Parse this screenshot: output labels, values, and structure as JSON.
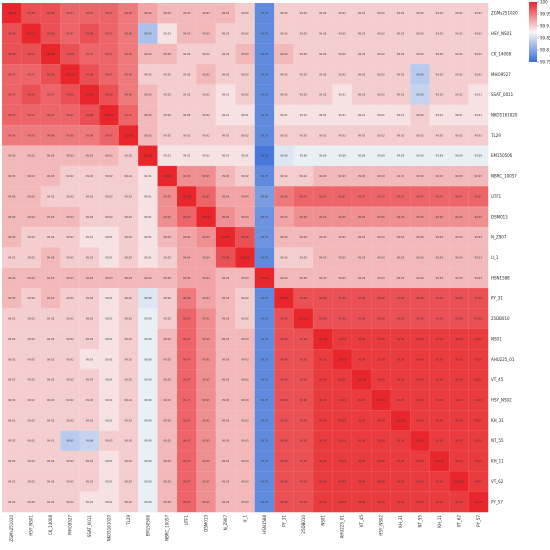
{
  "chart_data": {
    "type": "heatmap",
    "title": "",
    "xlabel": "",
    "ylabel": "",
    "labels": [
      "ZGMs251020",
      "HSY_NS01",
      "CK_14008",
      "MHO9527",
      "SSAT_0011",
      "NKO5161020",
      "TL29",
      "EM150506",
      "NBRC_10057",
      "UTF1",
      "DSM013",
      "N_Z907",
      "U_1",
      "HSN1588",
      "PY_31",
      "25DB010",
      "NS01",
      "AHU225_01",
      "VT_45",
      "HSY_NS02",
      "KH_31",
      "NT_55",
      "KH_11",
      "VT_62",
      "PY_57"
    ],
    "colorbar": {
      "min": 99.6,
      "max": 100,
      "ticks": [
        "99.75",
        "99.8",
        "99.85",
        "99.9",
        "99.95",
        "100"
      ]
    },
    "colors": {
      "high": "#e8262b",
      "mid": "#f7f7f7",
      "low": "#3a6fd8"
    },
    "values": [
      [
        100.0,
        99.98,
        99.98,
        99.97,
        99.97,
        99.97,
        99.96,
        99.94,
        99.93,
        99.93,
        99.93,
        99.93,
        99.92,
        99.78,
        99.92,
        99.92,
        99.92,
        99.92,
        99.92,
        99.92,
        99.92,
        99.92,
        99.92,
        99.92,
        99.92
      ],
      [
        99.98,
        100.0,
        99.98,
        99.97,
        99.98,
        99.97,
        99.96,
        99.84,
        99.91,
        99.93,
        99.93,
        99.92,
        99.92,
        99.78,
        99.92,
        99.92,
        99.92,
        99.92,
        99.92,
        99.92,
        99.92,
        99.92,
        99.92,
        99.92,
        99.92
      ],
      [
        99.98,
        99.98,
        100.0,
        99.98,
        99.97,
        99.97,
        99.96,
        99.93,
        99.93,
        99.92,
        99.92,
        99.92,
        99.93,
        99.78,
        99.93,
        99.92,
        99.92,
        99.92,
        99.92,
        99.92,
        99.92,
        99.92,
        99.92,
        99.92,
        99.92
      ],
      [
        99.97,
        99.97,
        99.98,
        100.0,
        99.98,
        99.97,
        99.96,
        99.92,
        99.92,
        99.92,
        99.93,
        99.92,
        99.92,
        99.78,
        99.92,
        99.92,
        99.92,
        99.92,
        99.92,
        99.92,
        99.92,
        99.85,
        99.92,
        99.92,
        99.92
      ],
      [
        99.97,
        99.98,
        99.97,
        99.98,
        100.0,
        99.98,
        99.96,
        99.93,
        99.92,
        99.92,
        99.92,
        99.91,
        99.92,
        99.78,
        99.92,
        99.92,
        99.92,
        99.91,
        99.92,
        99.92,
        99.92,
        99.86,
        99.92,
        99.92,
        99.91
      ],
      [
        99.97,
        99.97,
        99.97,
        99.97,
        99.98,
        100.0,
        99.97,
        99.93,
        99.92,
        99.92,
        99.92,
        99.91,
        99.91,
        99.78,
        99.91,
        99.91,
        99.91,
        99.91,
        99.91,
        99.91,
        99.91,
        99.92,
        99.91,
        99.91,
        99.91
      ],
      [
        99.96,
        99.96,
        99.96,
        99.96,
        99.96,
        99.97,
        100.0,
        99.93,
        99.92,
        99.92,
        99.92,
        99.92,
        99.92,
        99.78,
        99.92,
        99.92,
        99.92,
        99.92,
        99.92,
        99.92,
        99.92,
        99.92,
        99.92,
        99.92,
        99.92
      ],
      [
        99.93,
        99.93,
        99.93,
        99.93,
        99.93,
        99.93,
        99.92,
        100.0,
        99.91,
        99.91,
        99.91,
        99.91,
        99.91,
        99.76,
        99.88,
        99.89,
        99.89,
        99.89,
        99.89,
        99.89,
        99.89,
        99.89,
        99.89,
        99.89,
        99.89
      ],
      [
        99.93,
        99.93,
        99.93,
        99.92,
        99.92,
        99.92,
        99.92,
        99.91,
        100.0,
        99.95,
        99.95,
        99.93,
        99.92,
        99.78,
        99.92,
        99.92,
        99.93,
        99.93,
        99.93,
        99.93,
        99.93,
        99.93,
        99.93,
        99.93,
        99.93
      ],
      [
        99.93,
        99.93,
        99.92,
        99.92,
        99.92,
        99.92,
        99.92,
        99.91,
        99.95,
        100.0,
        99.97,
        99.94,
        99.94,
        99.8,
        99.96,
        99.97,
        99.97,
        99.97,
        99.97,
        99.97,
        99.97,
        99.97,
        99.97,
        99.97,
        99.97
      ],
      [
        99.93,
        99.93,
        99.93,
        99.93,
        99.92,
        99.92,
        99.92,
        99.91,
        99.95,
        99.97,
        100.0,
        99.95,
        99.94,
        99.79,
        99.94,
        99.95,
        99.95,
        99.95,
        99.95,
        99.95,
        99.95,
        99.95,
        99.95,
        99.95,
        99.95
      ],
      [
        99.93,
        99.92,
        99.92,
        99.92,
        99.91,
        99.91,
        99.92,
        99.91,
        99.93,
        99.94,
        99.95,
        100.0,
        99.98,
        99.79,
        99.93,
        99.93,
        99.93,
        99.93,
        99.93,
        99.93,
        99.93,
        99.93,
        99.93,
        99.93,
        99.93
      ],
      [
        99.92,
        99.92,
        99.93,
        99.92,
        99.92,
        99.91,
        99.92,
        99.91,
        99.92,
        99.94,
        99.94,
        99.98,
        100.0,
        99.78,
        99.92,
        99.92,
        99.93,
        99.93,
        99.93,
        99.93,
        99.93,
        99.93,
        99.93,
        99.93,
        99.93
      ],
      [
        99.93,
        99.93,
        99.93,
        99.93,
        99.93,
        99.93,
        99.93,
        99.93,
        99.93,
        99.94,
        99.94,
        99.93,
        99.93,
        100.0,
        99.93,
        99.93,
        99.93,
        99.93,
        99.93,
        99.93,
        99.93,
        99.93,
        99.93,
        99.93,
        99.93
      ],
      [
        99.93,
        99.92,
        99.93,
        99.92,
        99.92,
        99.91,
        99.92,
        99.88,
        99.92,
        99.96,
        99.94,
        99.93,
        99.92,
        99.78,
        100.0,
        99.98,
        99.98,
        99.98,
        99.98,
        99.98,
        99.98,
        99.98,
        99.98,
        99.98,
        99.98
      ],
      [
        99.92,
        99.92,
        99.92,
        99.92,
        99.92,
        99.91,
        99.92,
        99.89,
        99.92,
        99.97,
        99.95,
        99.93,
        99.92,
        99.78,
        99.98,
        100.0,
        99.98,
        99.98,
        99.98,
        99.98,
        99.98,
        99.98,
        99.98,
        99.98,
        99.98
      ],
      [
        99.92,
        99.92,
        99.92,
        99.92,
        99.92,
        99.91,
        99.92,
        99.89,
        99.93,
        99.97,
        99.95,
        99.93,
        99.93,
        99.78,
        99.98,
        99.98,
        100.0,
        99.99,
        99.99,
        99.99,
        99.99,
        99.99,
        99.99,
        99.99,
        99.99
      ],
      [
        99.92,
        99.92,
        99.92,
        99.92,
        99.91,
        99.91,
        99.92,
        99.89,
        99.93,
        99.97,
        99.95,
        99.93,
        99.93,
        99.78,
        99.98,
        99.98,
        99.99,
        100.0,
        99.99,
        99.99,
        99.99,
        99.99,
        99.99,
        99.99,
        99.99
      ],
      [
        99.92,
        99.92,
        99.92,
        99.92,
        99.92,
        99.91,
        99.92,
        99.89,
        99.93,
        99.97,
        99.95,
        99.93,
        99.93,
        99.78,
        99.98,
        99.98,
        99.99,
        99.99,
        100.0,
        99.99,
        99.99,
        99.99,
        99.99,
        99.99,
        99.99
      ],
      [
        99.92,
        99.92,
        99.92,
        99.92,
        99.92,
        99.91,
        99.92,
        99.89,
        99.93,
        99.97,
        99.95,
        99.93,
        99.93,
        99.78,
        99.98,
        99.98,
        99.99,
        99.99,
        99.99,
        100.0,
        99.99,
        99.99,
        99.99,
        99.99,
        99.99
      ],
      [
        99.92,
        99.92,
        99.92,
        99.92,
        99.92,
        99.91,
        99.92,
        99.89,
        99.93,
        99.97,
        99.95,
        99.93,
        99.93,
        99.78,
        99.98,
        99.98,
        99.99,
        99.99,
        99.99,
        99.99,
        100.0,
        99.99,
        99.99,
        99.99,
        99.99
      ],
      [
        99.92,
        99.92,
        99.92,
        99.85,
        99.86,
        99.92,
        99.92,
        99.89,
        99.93,
        99.97,
        99.95,
        99.93,
        99.93,
        99.78,
        99.98,
        99.98,
        99.99,
        99.99,
        99.99,
        99.99,
        99.99,
        100.0,
        99.99,
        99.99,
        99.99
      ],
      [
        99.92,
        99.92,
        99.92,
        99.92,
        99.92,
        99.91,
        99.92,
        99.89,
        99.93,
        99.97,
        99.95,
        99.93,
        99.93,
        99.78,
        99.98,
        99.98,
        99.99,
        99.99,
        99.99,
        99.99,
        99.99,
        99.99,
        100.0,
        99.99,
        99.99
      ],
      [
        99.92,
        99.92,
        99.92,
        99.92,
        99.92,
        99.91,
        99.92,
        99.89,
        99.93,
        99.97,
        99.95,
        99.93,
        99.93,
        99.78,
        99.98,
        99.98,
        99.99,
        99.99,
        99.99,
        99.99,
        99.99,
        99.99,
        99.99,
        100.0,
        99.99
      ],
      [
        99.92,
        99.92,
        99.92,
        99.92,
        99.91,
        99.91,
        99.92,
        99.89,
        99.93,
        99.97,
        99.95,
        99.93,
        99.93,
        99.78,
        99.98,
        99.98,
        99.99,
        99.99,
        99.99,
        99.99,
        99.99,
        99.99,
        99.99,
        99.99,
        100.0
      ]
    ]
  }
}
